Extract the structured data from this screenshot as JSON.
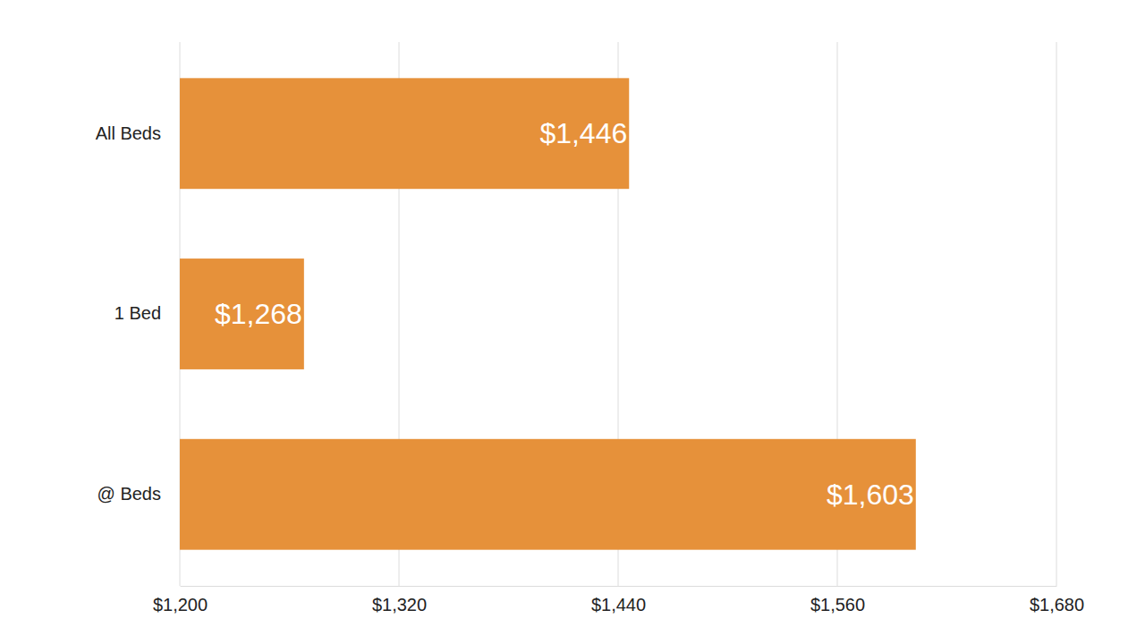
{
  "chart_data": {
    "type": "bar",
    "orientation": "horizontal",
    "categories": [
      "All Beds",
      "1 Bed",
      "@ Beds"
    ],
    "values": [
      1446,
      1268,
      1603
    ],
    "value_labels": [
      "$1,446",
      "$1,268",
      "$1,603"
    ],
    "color": "#e6913a",
    "xlim": [
      1200,
      1680
    ],
    "xticks": [
      {
        "value": 1200,
        "label": "$1,200"
      },
      {
        "value": 1320,
        "label": "$1,320"
      },
      {
        "value": 1440,
        "label": "$1,440"
      },
      {
        "value": 1560,
        "label": "$1,560"
      },
      {
        "value": 1680,
        "label": "$1,680"
      }
    ],
    "grid": true,
    "data_labels": true
  }
}
